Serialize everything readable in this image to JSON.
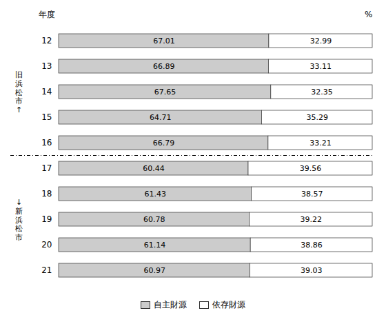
{
  "chart_data": {
    "type": "bar",
    "orientation": "horizontal",
    "stacked": true,
    "ylabel": "年度",
    "xlabel": "%",
    "categories": [
      "12",
      "13",
      "14",
      "15",
      "16",
      "17",
      "18",
      "19",
      "20",
      "21"
    ],
    "series": [
      {
        "name": "自主財源",
        "color": "#cccccc",
        "values": [
          67.01,
          66.89,
          67.65,
          64.71,
          66.79,
          60.44,
          61.43,
          60.78,
          61.14,
          60.97
        ]
      },
      {
        "name": "依存財源",
        "color": "#ffffff",
        "values": [
          32.99,
          33.11,
          32.35,
          35.29,
          33.21,
          39.56,
          38.57,
          39.22,
          38.86,
          39.03
        ]
      }
    ],
    "xlim": [
      0,
      100
    ],
    "tick_labels": "y",
    "data_labels": true,
    "grid": false,
    "legend": "bottom",
    "annotations": [
      {
        "text": "旧浜松市↑",
        "from": "12",
        "to": "16"
      },
      {
        "text": "↓新浜松市",
        "from": "17",
        "to": "21"
      }
    ]
  }
}
